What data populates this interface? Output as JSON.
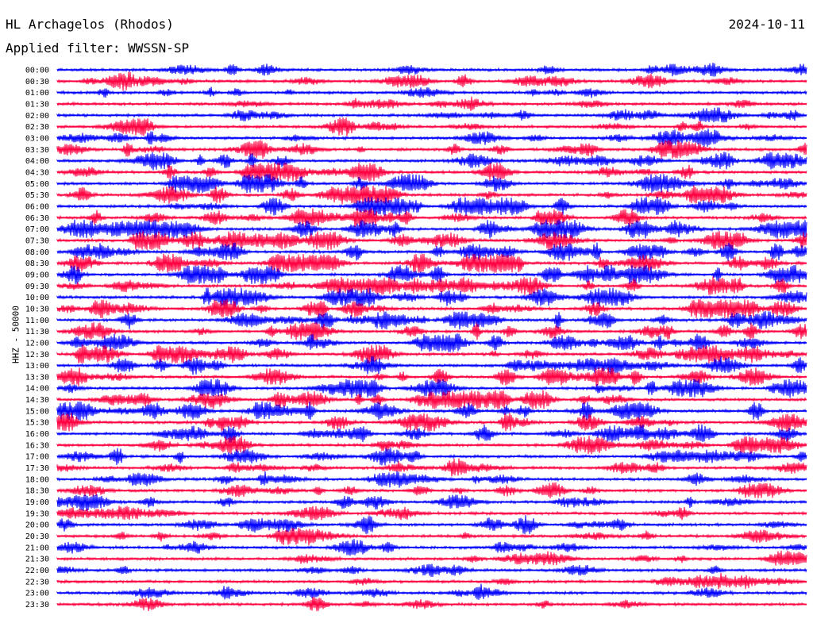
{
  "header": {
    "station": "HL Archagelos (Rhodos)",
    "date": "2024-10-11",
    "filter": "Applied filter: WWSSN-SP",
    "channel_label": "HHZ - 50000"
  },
  "colors": {
    "blue": "#0000ff",
    "red": "#ff0040"
  },
  "chart_data": {
    "type": "line",
    "title": "HL Archagelos (Rhodos)",
    "subtitle": "Applied filter: WWSSN-SP",
    "ylabel": "HHZ - 50000",
    "ytick_labels": [
      "00:00",
      "00:30",
      "01:00",
      "01:30",
      "02:00",
      "02:30",
      "03:00",
      "03:30",
      "04:00",
      "04:30",
      "05:00",
      "05:30",
      "06:00",
      "06:30",
      "07:00",
      "07:30",
      "08:00",
      "08:30",
      "09:00",
      "09:30",
      "10:00",
      "10:30",
      "11:00",
      "11:30",
      "12:00",
      "12:30",
      "13:00",
      "13:30",
      "14:00",
      "14:30",
      "15:00",
      "15:30",
      "16:00",
      "16:30",
      "17:00",
      "17:30",
      "18:00",
      "18:30",
      "19:00",
      "19:30",
      "20:00",
      "20:30",
      "21:00",
      "21:30",
      "22:00",
      "22:30",
      "23:00",
      "23:30"
    ],
    "trace_colors": [
      "blue",
      "red"
    ],
    "activity_levels": [
      0.4,
      0.5,
      0.3,
      0.3,
      0.4,
      0.5,
      0.5,
      0.6,
      0.6,
      0.8,
      0.8,
      0.8,
      0.9,
      0.9,
      1.0,
      1.0,
      1.0,
      1.0,
      0.9,
      0.9,
      0.8,
      0.9,
      0.9,
      0.8,
      0.8,
      0.8,
      0.8,
      0.8,
      0.8,
      0.8,
      0.8,
      0.7,
      0.7,
      0.6,
      0.6,
      0.5,
      0.5,
      0.5,
      0.5,
      0.4,
      0.5,
      0.5,
      0.4,
      0.4,
      0.3,
      0.3,
      0.3,
      0.2
    ],
    "grid": false
  }
}
